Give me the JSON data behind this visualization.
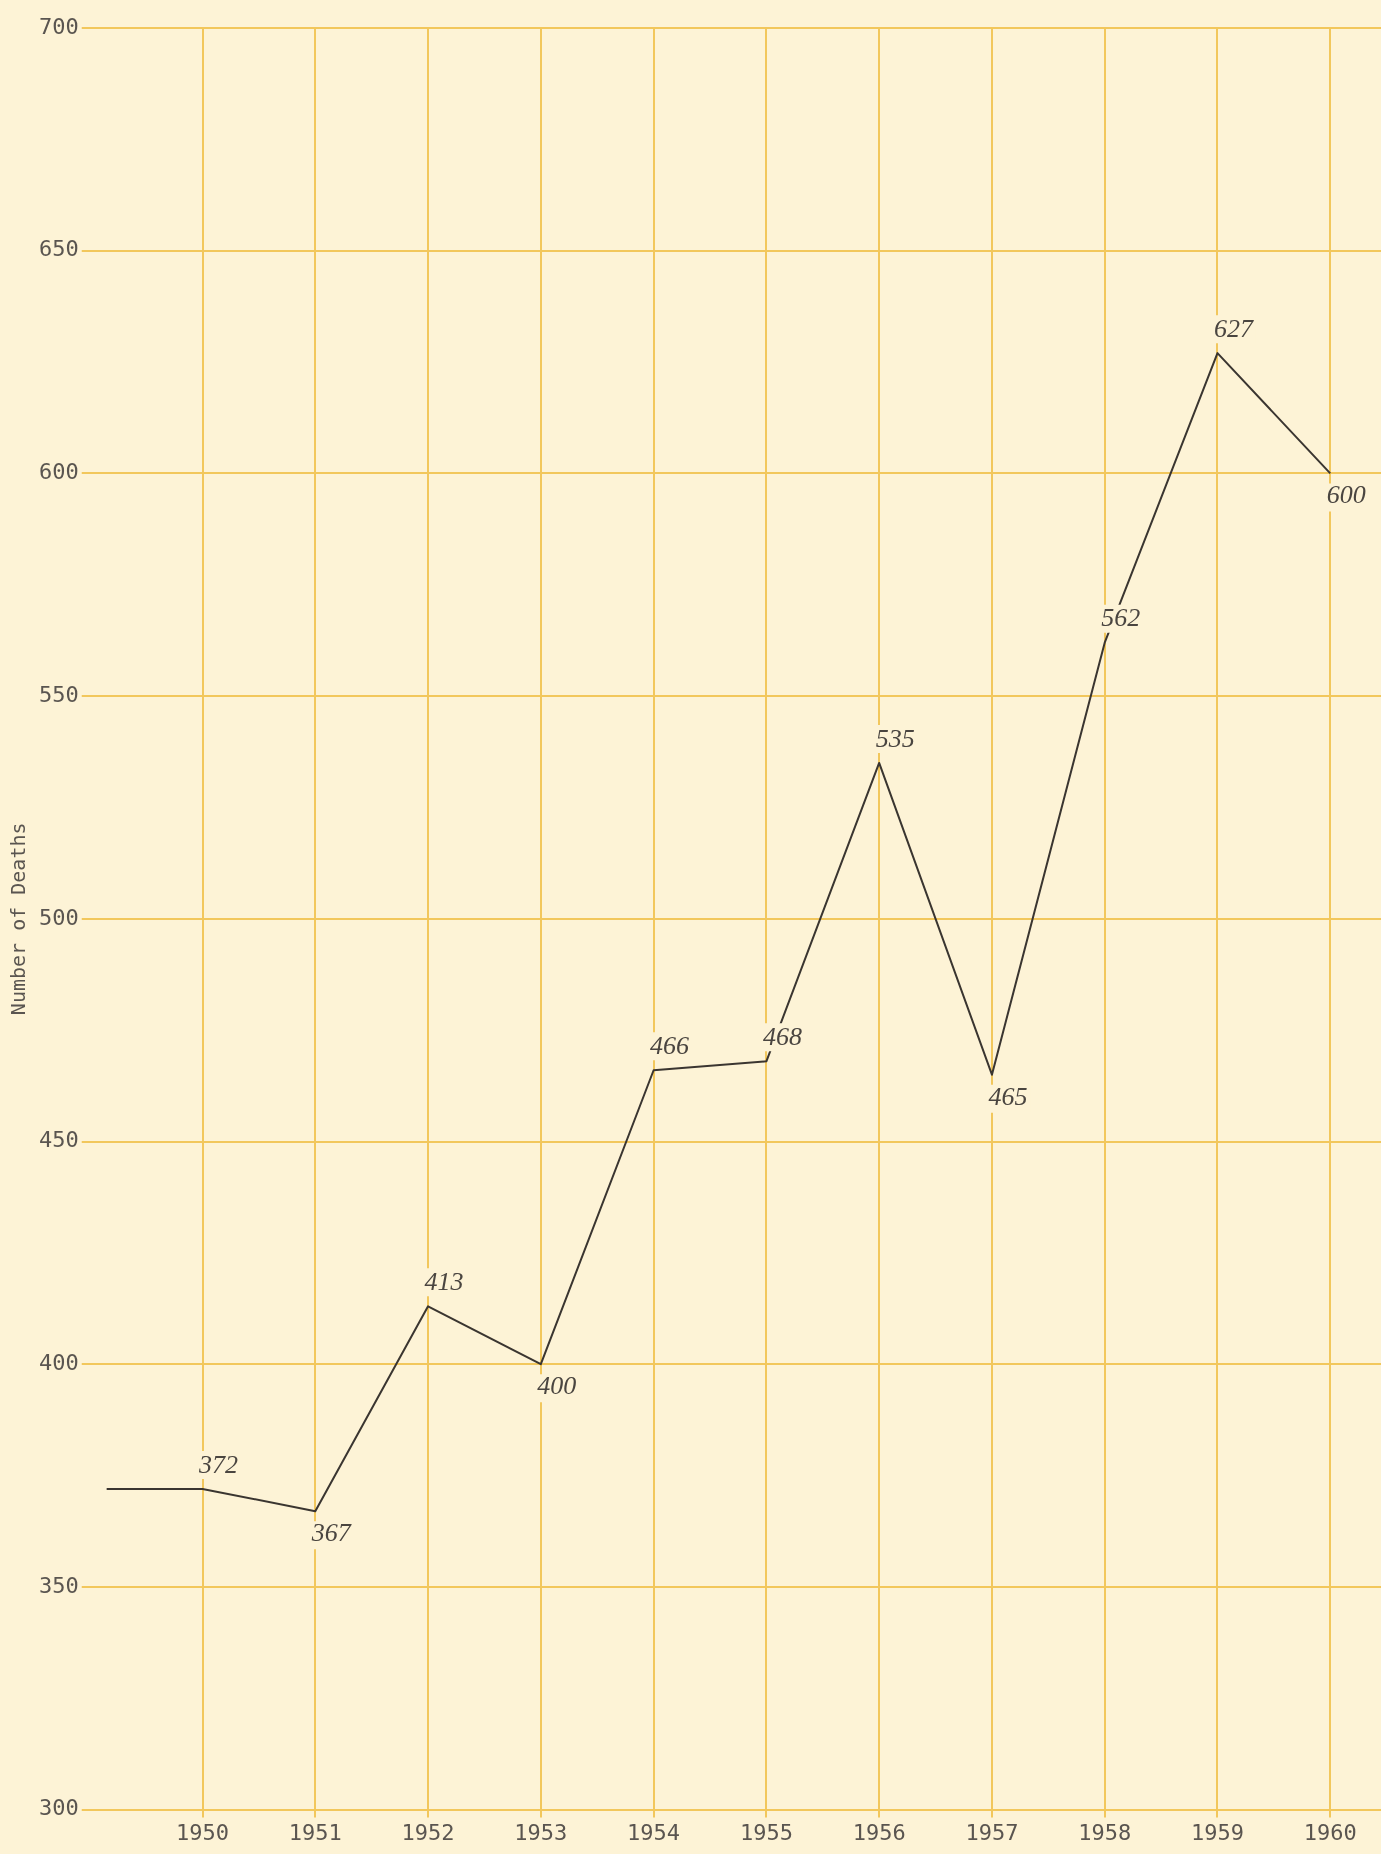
{
  "chart_data": {
    "type": "line",
    "ylabel": "Number of Deaths",
    "x": [
      1949.15,
      1950,
      1951,
      1952,
      1953,
      1954,
      1955,
      1956,
      1957,
      1958,
      1959,
      1960
    ],
    "values": [
      372,
      372,
      367,
      413,
      400,
      466,
      468,
      535,
      465,
      562,
      627,
      600
    ],
    "value_labels": [
      null,
      "372",
      "367",
      "413",
      "400",
      "466",
      "468",
      "535",
      "465",
      "562",
      "627",
      "600"
    ],
    "color": "#3a3530",
    "xlim": [
      1949,
      1960.45
    ],
    "xticks": [
      1950,
      1951,
      1952,
      1953,
      1954,
      1955,
      1956,
      1957,
      1958,
      1959,
      1960
    ],
    "ylim": [
      300,
      700
    ],
    "yticks": [
      300,
      350,
      400,
      450,
      500,
      550,
      600,
      650,
      700
    ],
    "grid": true,
    "marker": "none",
    "line_style": "solid"
  }
}
